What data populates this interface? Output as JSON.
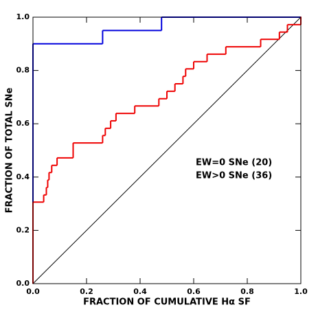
{
  "chart_data": {
    "type": "step",
    "xlabel": "FRACTION OF CUMULATIVE Hα SF",
    "ylabel": "FRACTION OF TOTAL SNe",
    "xlim": [
      0,
      1
    ],
    "ylim": [
      0,
      1
    ],
    "xticks": [
      {
        "value": 0,
        "label": "0.0"
      },
      {
        "value": 0.2,
        "label": "0.2"
      },
      {
        "value": 0.4,
        "label": "0.4"
      },
      {
        "value": 0.6,
        "label": "0.6"
      },
      {
        "value": 0.8,
        "label": "0.8"
      },
      {
        "value": 1,
        "label": "1.0"
      }
    ],
    "yticks": [
      {
        "value": 0,
        "label": "0.0"
      },
      {
        "value": 0.2,
        "label": "0.2"
      },
      {
        "value": 0.4,
        "label": "0.4"
      },
      {
        "value": 0.6,
        "label": "0.6"
      },
      {
        "value": 0.8,
        "label": "0.8"
      },
      {
        "value": 1,
        "label": "1.0"
      }
    ],
    "diagonal_reference": true,
    "series": [
      {
        "name": "EW=0 SNe (20)",
        "color": "#0000dd",
        "x": [
          0,
          0.26,
          0.48
        ],
        "values": [
          0.9,
          0.95,
          1.0
        ]
      },
      {
        "name": "EW>0 SNe (36)",
        "color": "#ee0000",
        "x": [
          0,
          0.04,
          0.05,
          0.055,
          0.06,
          0.07,
          0.09,
          0.15,
          0.26,
          0.27,
          0.29,
          0.31,
          0.38,
          0.47,
          0.5,
          0.53,
          0.56,
          0.57,
          0.6,
          0.65,
          0.72,
          0.85,
          0.92,
          0.95,
          1.0
        ],
        "values": [
          0.306,
          0.333,
          0.361,
          0.389,
          0.417,
          0.444,
          0.472,
          0.528,
          0.556,
          0.583,
          0.611,
          0.639,
          0.667,
          0.694,
          0.722,
          0.75,
          0.778,
          0.806,
          0.833,
          0.861,
          0.889,
          0.917,
          0.944,
          0.972,
          1.0
        ]
      }
    ]
  }
}
